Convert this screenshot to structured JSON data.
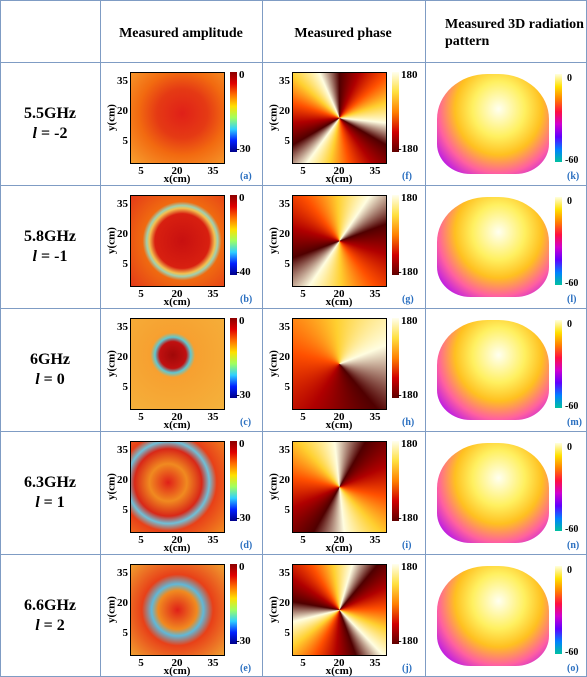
{
  "header": {
    "corner": "",
    "columns": [
      "Measured amplitude",
      "Measured phase",
      "Measured 3D radiation pattern"
    ]
  },
  "axes": {
    "ticks": [
      "5",
      "20",
      "35"
    ],
    "x_label": "x(cm)",
    "y_label": "y(cm)"
  },
  "rows": [
    {
      "frequency": "5.5GHz",
      "mode": {
        "symbol": "l",
        "value": "= -2"
      },
      "amplitude": {
        "colorbar": [
          "0",
          "-30"
        ],
        "panel": "(a)"
      },
      "phase": {
        "colorbar": [
          "180",
          "-180"
        ],
        "panel": "(f)"
      },
      "pattern": {
        "colorbar": [
          "0",
          "-60"
        ],
        "panel": "(k)"
      }
    },
    {
      "frequency": "5.8GHz",
      "mode": {
        "symbol": "l",
        "value": "= -1"
      },
      "amplitude": {
        "colorbar": [
          "0",
          "-40"
        ],
        "panel": "(b)"
      },
      "phase": {
        "colorbar": [
          "180",
          "-180"
        ],
        "panel": "(g)"
      },
      "pattern": {
        "colorbar": [
          "0",
          "-60"
        ],
        "panel": "(l)"
      }
    },
    {
      "frequency": "6GHz",
      "mode": {
        "symbol": "l",
        "value": "= 0"
      },
      "amplitude": {
        "colorbar": [
          "0",
          "-30"
        ],
        "panel": "(c)"
      },
      "phase": {
        "colorbar": [
          "180",
          "-180"
        ],
        "panel": "(h)"
      },
      "pattern": {
        "colorbar": [
          "0",
          "-60"
        ],
        "panel": "(m)"
      }
    },
    {
      "frequency": "6.3GHz",
      "mode": {
        "symbol": "l",
        "value": "= 1"
      },
      "amplitude": {
        "colorbar": [
          "0",
          "-30"
        ],
        "panel": "(d)"
      },
      "phase": {
        "colorbar": [
          "180",
          "-180"
        ],
        "panel": "(i)"
      },
      "pattern": {
        "colorbar": [
          "0",
          "-60"
        ],
        "panel": "(n)"
      }
    },
    {
      "frequency": "6.6GHz",
      "mode": {
        "symbol": "l",
        "value": "= 2"
      },
      "amplitude": {
        "colorbar": [
          "0",
          "-30"
        ],
        "panel": "(e)"
      },
      "phase": {
        "colorbar": [
          "180",
          "-180"
        ],
        "panel": "(j)"
      },
      "pattern": {
        "colorbar": [
          "0",
          "-60"
        ],
        "panel": "(o)"
      }
    }
  ]
}
